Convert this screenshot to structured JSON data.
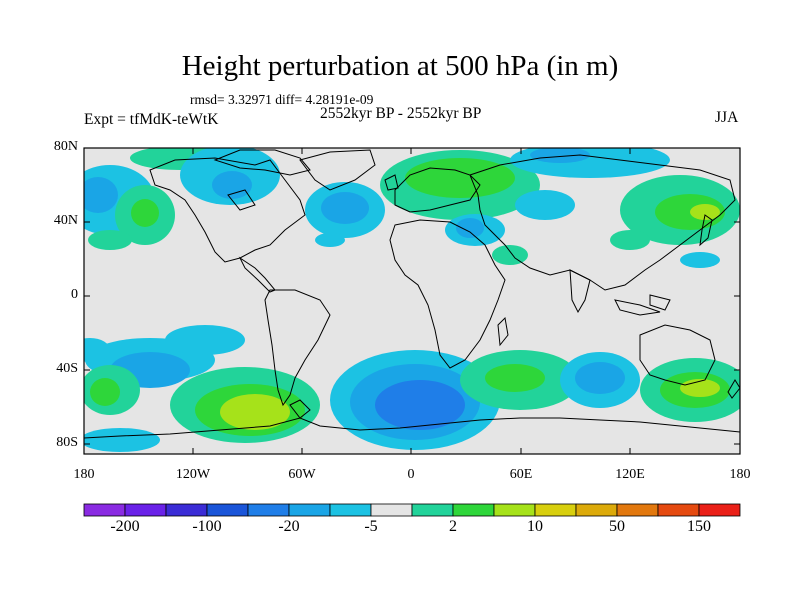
{
  "title": "Height perturbation at 500 hPa (in m)",
  "stats": "rmsd= 3.32971 diff= 4.28191e-09",
  "experiment": "Expt = tfMdK-teWtK",
  "period": "2552kyr BP - 2552kyr BP",
  "season": "JJA",
  "y_axis_labels": [
    "80N",
    "40N",
    "0",
    "40S",
    "80S"
  ],
  "x_axis_labels": [
    "180",
    "120W",
    "60W",
    "0",
    "60E",
    "120E",
    "180"
  ],
  "colorbar": {
    "labels": [
      "-200",
      "-100",
      "-20",
      "-5",
      "2",
      "10",
      "50",
      "150"
    ],
    "colors": [
      "#8a2be2",
      "#6a22e8",
      "#3b2cd6",
      "#1a55d9",
      "#1f7ee8",
      "#1aa5e6",
      "#1cc2e3",
      "#e5e5e5",
      "#22d39a",
      "#2ed63a",
      "#a6e21a",
      "#d8cf0e",
      "#dcaa0a",
      "#e2780e",
      "#e54a10",
      "#ea2018"
    ]
  },
  "colors": {
    "background_zero": "#e5e5e5",
    "light_blue": "#1cc2e3",
    "mid_blue": "#1aa5e6",
    "blue": "#1f7ee8",
    "green_light": "#22d39a",
    "green": "#2ed63a",
    "yellow_green": "#a6e21a"
  }
}
